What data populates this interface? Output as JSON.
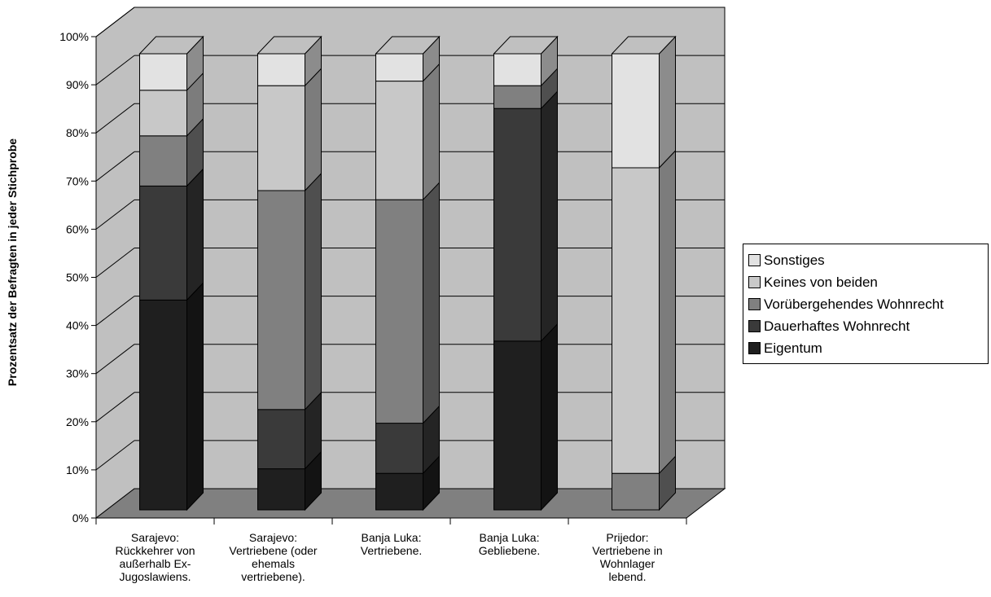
{
  "chart_data": {
    "type": "bar",
    "stacked": true,
    "three_d": true,
    "title": "",
    "xlabel": "",
    "ylabel": "Prozentsatz der Befragten in jeder Stichprobe",
    "ylim": [
      0,
      100
    ],
    "yticks": [
      "0%",
      "10%",
      "20%",
      "30%",
      "40%",
      "50%",
      "60%",
      "70%",
      "80%",
      "90%",
      "100%"
    ],
    "grid": true,
    "legend_position": "right",
    "categories": [
      "Sarajevo: Rückkehrer von außerhalb Ex-Jugoslawiens.",
      "Sarajevo: Vertriebene (oder ehemals vertriebene).",
      "Banja Luka: Vertriebene.",
      "Banja Luka: Gebliebene.",
      "Prijedor: Vertriebene in Wohnlager lebend."
    ],
    "category_lines": [
      [
        "Sarajevo:",
        "Rückkehrer von",
        "außerhalb  Ex-",
        "Jugoslawiens."
      ],
      [
        "Sarajevo:",
        "Vertriebene (oder",
        "ehemals",
        "vertriebene)."
      ],
      [
        "Banja Luka:",
        "Vertriebene."
      ],
      [
        "Banja Luka:",
        "Gebliebene."
      ],
      [
        "Prijedor:",
        "Vertriebene in",
        "Wohnlager",
        "lebend."
      ]
    ],
    "series": [
      {
        "name": "Eigentum",
        "values": [
          46,
          9,
          8,
          37,
          0
        ],
        "color": "#1f1f1f"
      },
      {
        "name": "Dauerhaftes Wohnrecht",
        "values": [
          25,
          13,
          11,
          51,
          0
        ],
        "color": "#3a3a3a"
      },
      {
        "name": "Vorübergehendes Wohnrecht",
        "values": [
          11,
          48,
          49,
          5,
          8
        ],
        "color": "#808080"
      },
      {
        "name": "Keines von beiden",
        "values": [
          10,
          23,
          26,
          0,
          67
        ],
        "color": "#c8c8c8"
      },
      {
        "name": "Sonstiges",
        "values": [
          8,
          7,
          6,
          7,
          25
        ],
        "color": "#e2e2e2"
      }
    ],
    "legend_order": [
      "Sonstiges",
      "Keines von beiden",
      "Vorübergehendes Wohnrecht",
      "Dauerhaftes Wohnrecht",
      "Eigentum"
    ],
    "colors": {
      "wall": "#c0c0c0",
      "floor": "#808080",
      "grid": "#000000"
    }
  }
}
